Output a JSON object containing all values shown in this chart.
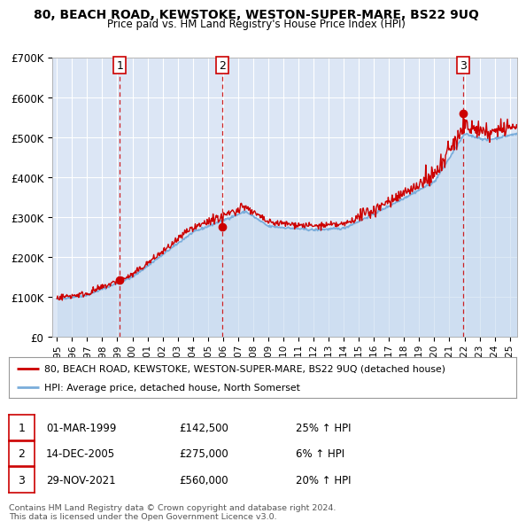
{
  "title": "80, BEACH ROAD, KEWSTOKE, WESTON-SUPER-MARE, BS22 9UQ",
  "subtitle": "Price paid vs. HM Land Registry's House Price Index (HPI)",
  "yticks": [
    0,
    100000,
    200000,
    300000,
    400000,
    500000,
    600000,
    700000
  ],
  "ytick_labels": [
    "£0",
    "£100K",
    "£200K",
    "£300K",
    "£400K",
    "£500K",
    "£600K",
    "£700K"
  ],
  "plot_bg_color": "#dce6f5",
  "grid_color": "#ffffff",
  "red_line_color": "#cc0000",
  "blue_line_color": "#7aaddb",
  "blue_fill_color": "#c5d9ef",
  "transactions": [
    {
      "num": 1,
      "date_str": "01-MAR-1999",
      "price": 142500,
      "year": 1999.17,
      "pct": "25%",
      "dir": "↑"
    },
    {
      "num": 2,
      "date_str": "14-DEC-2005",
      "price": 275000,
      "year": 2005.95,
      "pct": "6%",
      "dir": "↑"
    },
    {
      "num": 3,
      "date_str": "29-NOV-2021",
      "price": 560000,
      "year": 2021.91,
      "pct": "20%",
      "dir": "↑"
    }
  ],
  "legend_red_label": "80, BEACH ROAD, KEWSTOKE, WESTON-SUPER-MARE, BS22 9UQ (detached house)",
  "legend_blue_label": "HPI: Average price, detached house, North Somerset",
  "footer_line1": "Contains HM Land Registry data © Crown copyright and database right 2024.",
  "footer_line2": "This data is licensed under the Open Government Licence v3.0.",
  "table_rows": [
    [
      "1",
      "01-MAR-1999",
      "£142,500",
      "25% ↑ HPI"
    ],
    [
      "2",
      "14-DEC-2005",
      "£275,000",
      "6% ↑ HPI"
    ],
    [
      "3",
      "29-NOV-2021",
      "£560,000",
      "20% ↑ HPI"
    ]
  ]
}
